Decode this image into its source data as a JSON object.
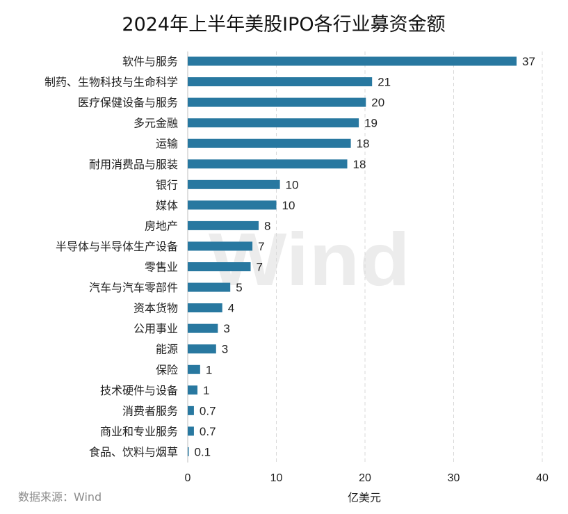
{
  "chart_data": {
    "type": "bar",
    "orientation": "horizontal",
    "title": "2024年上半年美股IPO各行业募资金额",
    "xlabel": "亿美元",
    "ylabel": "",
    "xlim": [
      0,
      40
    ],
    "x_ticks": [
      0,
      10,
      20,
      30,
      40
    ],
    "grid": true,
    "bar_color": "#2878a0",
    "categories": [
      "软件与服务",
      "制药、生物科技与生命科学",
      "医疗保健设备与服务",
      "多元金融",
      "运输",
      "耐用消费品与服装",
      "银行",
      "媒体",
      "房地产",
      "半导体与半导体生产设备",
      "零售业",
      "汽车与汽车零部件",
      "资本货物",
      "公用事业",
      "能源",
      "保险",
      "技术硬件与设备",
      "消费者服务",
      "商业和专业服务",
      "食品、饮料与烟草"
    ],
    "values": [
      37.1,
      20.8,
      20.1,
      19.3,
      18.4,
      18.0,
      10.4,
      10.0,
      8.0,
      7.3,
      7.1,
      4.8,
      3.9,
      3.4,
      3.2,
      1.4,
      1.1,
      0.7,
      0.7,
      0.1
    ],
    "value_labels": [
      "37",
      "21",
      "20",
      "19",
      "18",
      "18",
      "10",
      "10",
      "8",
      "7",
      "7",
      "5",
      "4",
      "3",
      "3",
      "1",
      "1",
      "0.7",
      "0.7",
      "0.1"
    ]
  },
  "source": "数据来源：Wind",
  "watermark": "Wind"
}
